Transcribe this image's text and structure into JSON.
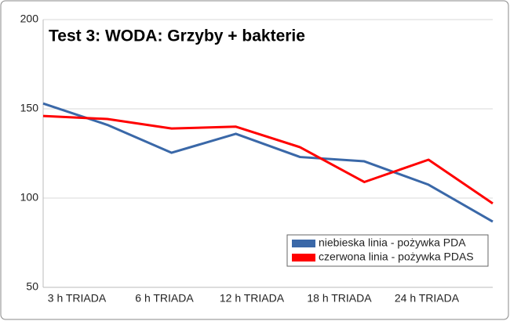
{
  "chart_data": {
    "type": "line",
    "title": "Test 3:  WODA:  Grzyby + bakterie",
    "categories": [
      null,
      null,
      null,
      null,
      null,
      null,
      null,
      null
    ],
    "x_labels": [
      "3 h TRIADA",
      "6 h TRIADA",
      "12 h TRIADA",
      "18 h TRIADA",
      "24 h TRIADA"
    ],
    "series": [
      {
        "name": "niebieska linia - pożywka PDA",
        "color": "#3a68a8",
        "values": [
          153,
          141,
          125.4,
          136,
          123,
          120.6,
          107.5,
          86.8
        ]
      },
      {
        "name": "czerwona linia - pożywka PDAS",
        "color": "#ff0000",
        "values": [
          146,
          144.3,
          139,
          140,
          128.5,
          109,
          121.5,
          97
        ]
      }
    ],
    "ylim": [
      50,
      200
    ],
    "yticks": [
      50,
      100,
      150,
      200
    ],
    "grid": true,
    "legend": "lower right"
  }
}
